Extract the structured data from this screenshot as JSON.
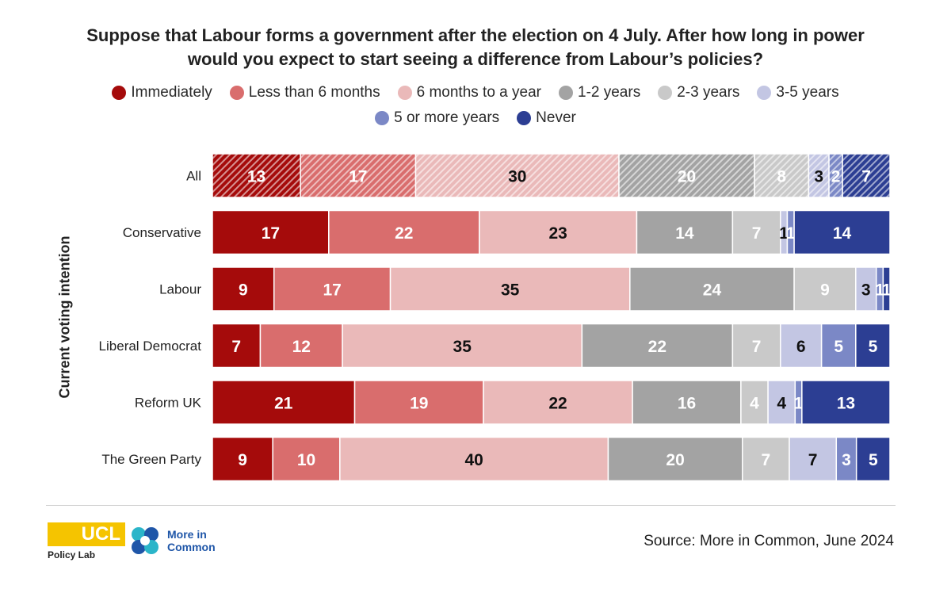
{
  "title_line1": "Suppose that Labour forms a government after the election on 4 July. After how long in power",
  "title_line2": "would you expect to start seeing a difference from Labour’s policies?",
  "y_axis_label": "Current voting intention",
  "source": "Source: More in Common, June 2024",
  "logos": {
    "ucl_text": "UCL",
    "policy_lab": "Policy Lab",
    "mic_line1": "More in",
    "mic_line2": "Common"
  },
  "colors": {
    "Immediately": "#a50b0b",
    "Less than 6 months": "#d96d6d",
    "6 months to a year": "#eab9b9",
    "1-2 years": "#a3a3a3",
    "2-3 years": "#c9c9c9",
    "3-5 years": "#c3c6e3",
    "5 or more years": "#7b88c6",
    "Never": "#2c3e93"
  },
  "chart_data": {
    "type": "bar",
    "orientation": "horizontal-stacked-100",
    "categories": [
      "All",
      "Conservative",
      "Labour",
      "Liberal Democrat",
      "Reform UK",
      "The Green Party"
    ],
    "hatched_categories": [
      "All"
    ],
    "legend_placement": "top",
    "grid": false,
    "xlim": [
      0,
      100
    ],
    "series": [
      {
        "name": "Immediately",
        "values": [
          13,
          17,
          9,
          7,
          21,
          9
        ]
      },
      {
        "name": "Less than 6 months",
        "values": [
          17,
          22,
          17,
          12,
          19,
          10
        ]
      },
      {
        "name": "6 months to a year",
        "values": [
          30,
          23,
          35,
          35,
          22,
          40
        ]
      },
      {
        "name": "1-2 years",
        "values": [
          20,
          14,
          24,
          22,
          16,
          20
        ]
      },
      {
        "name": "2-3 years",
        "values": [
          8,
          7,
          9,
          7,
          4,
          7
        ]
      },
      {
        "name": "3-5 years",
        "values": [
          3,
          1,
          3,
          6,
          4,
          7
        ]
      },
      {
        "name": "5 or more years",
        "values": [
          2,
          1,
          1,
          5,
          1,
          3
        ]
      },
      {
        "name": "Never",
        "values": [
          7,
          14,
          1,
          5,
          13,
          5
        ]
      }
    ]
  }
}
